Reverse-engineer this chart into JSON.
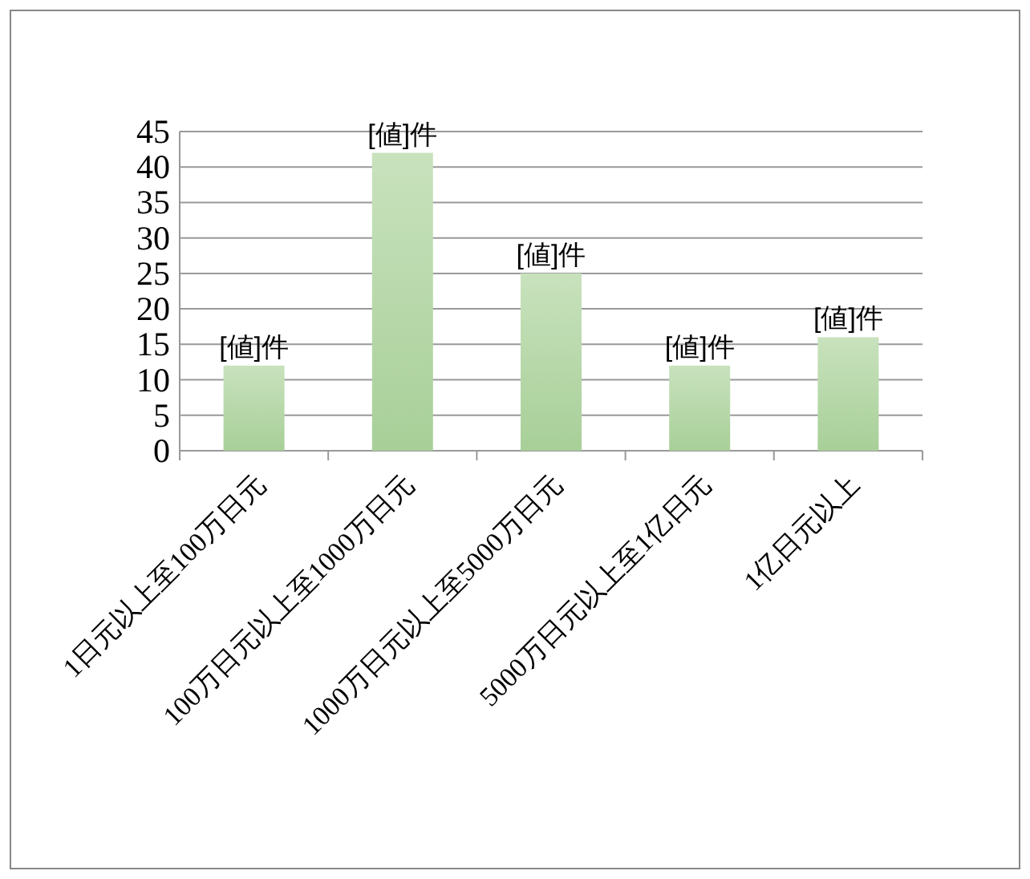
{
  "chart_data": {
    "type": "bar",
    "categories": [
      "1日元以上至100万日元",
      "100万日元以上至1000万日元",
      "1000万日元以上至5000万日元",
      "5000万日元以上至1亿日元",
      "1亿日元以上"
    ],
    "values": [
      12,
      42,
      25,
      12,
      16
    ],
    "value_labels": [
      "[値]件",
      "[値]件",
      "[値]件",
      "[値]件",
      "[値]件"
    ],
    "color": "#a8cf98",
    "ylim": [
      0,
      45
    ],
    "yticks": [
      0,
      5,
      10,
      15,
      20,
      25,
      30,
      35,
      40,
      45
    ],
    "grid": "y"
  }
}
